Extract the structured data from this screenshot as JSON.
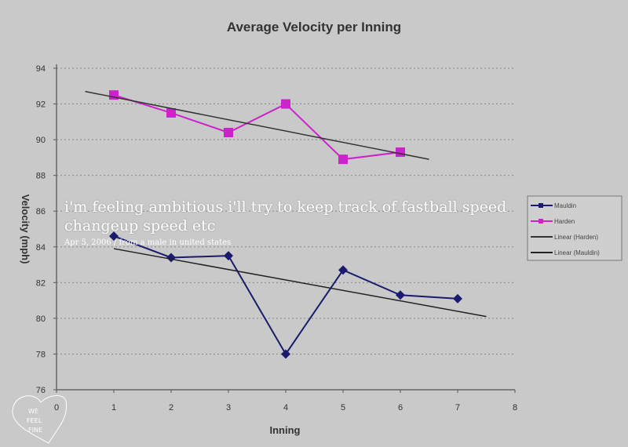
{
  "post": {
    "text": "i'm feeling ambitious i'll try to keep track of fastball speed changeup speed etc",
    "meta": "Apr 5, 2006 / from a male in united states"
  },
  "logo": {
    "text": "WE FEEL FINE"
  },
  "chart_data": {
    "type": "line",
    "title": "Average Velocity per Inning",
    "xlabel": "Inning",
    "ylabel": "Velocity (mph)",
    "xlim": [
      0,
      8
    ],
    "ylim": [
      76,
      94
    ],
    "xticks": [
      0,
      1,
      2,
      3,
      4,
      5,
      6,
      7,
      8
    ],
    "yticks": [
      76,
      78,
      80,
      82,
      84,
      86,
      88,
      90,
      92,
      94
    ],
    "grid": "horizontal dotted",
    "legend_position": "right",
    "series": [
      {
        "name": "Mauldin",
        "color": "#1a1a6e",
        "marker": "diamond",
        "x": [
          1,
          2,
          3,
          4,
          5,
          6,
          7
        ],
        "y": [
          84.6,
          83.4,
          83.5,
          78.0,
          82.7,
          81.3,
          81.1
        ]
      },
      {
        "name": "Harden",
        "color": "#cc22cc",
        "marker": "square",
        "x": [
          1,
          2,
          3,
          4,
          5,
          6
        ],
        "y": [
          92.5,
          91.5,
          90.4,
          92.0,
          88.9,
          89.3
        ]
      },
      {
        "name": "Linear (Harden)",
        "color": "#333333",
        "type": "trend",
        "x": [
          0.5,
          6.5
        ],
        "y": [
          92.7,
          88.9
        ]
      },
      {
        "name": "Linear (Mauldin)",
        "color": "#222222",
        "type": "trend",
        "x": [
          1.0,
          7.5
        ],
        "y": [
          83.9,
          80.1
        ]
      }
    ]
  }
}
